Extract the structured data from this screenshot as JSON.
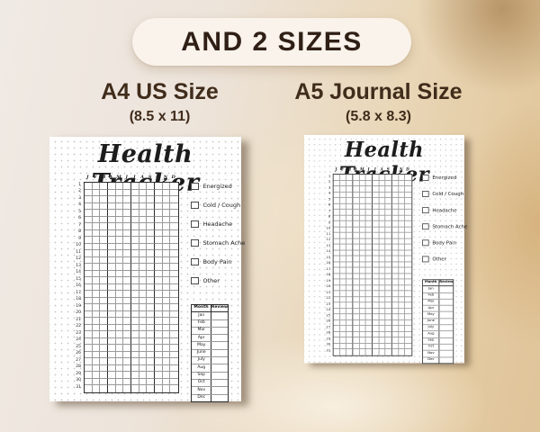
{
  "banner": {
    "label": "AND 2 SIZES"
  },
  "sizes": [
    {
      "title": "A4 US Size",
      "dimensions": "(8.5 x 11)"
    },
    {
      "title": "A5 Journal Size",
      "dimensions": "(5.8 x 8.3)"
    }
  ],
  "tracker_page": {
    "title": "Health Tracker",
    "month_letters": [
      "J",
      "F",
      "M",
      "A",
      "M",
      "J",
      "J",
      "A",
      "S",
      "O",
      "N",
      "D"
    ],
    "day_rows": 31,
    "checklist": [
      "Energized",
      "Cold / Cough",
      "Headache",
      "Stomach Ache",
      "Body Pain",
      "Other"
    ],
    "review_table": {
      "headers": [
        "Month",
        "Review"
      ],
      "months": [
        "Jan",
        "Feb",
        "Mar",
        "Apr",
        "May",
        "June",
        "July",
        "Aug",
        "Sep",
        "Oct",
        "Nov",
        "Dec"
      ]
    }
  },
  "colors": {
    "banner_bg": "#faf3eb",
    "banner_text": "#2f1f15",
    "heading_text": "#402c1b",
    "bg_cream": "#f0eae4",
    "bg_tan": "#e0c49a",
    "page_bg": "#ffffff",
    "ink": "#1c1c1c",
    "grid_line": "#9a9a9a",
    "grid_line_strong": "#2d2d2d"
  }
}
